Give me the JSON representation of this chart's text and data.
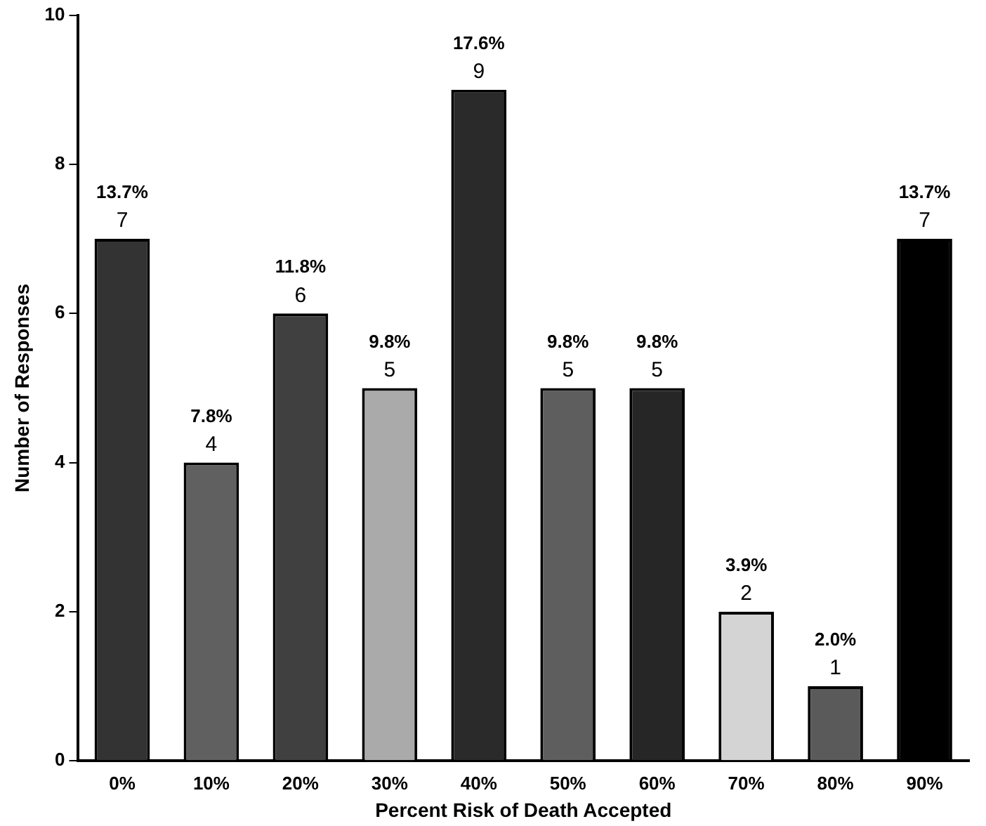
{
  "chart_data": {
    "type": "bar",
    "xlabel": "Percent Risk of Death Accepted",
    "ylabel": "Number of Responses",
    "categories": [
      "0%",
      "10%",
      "20%",
      "30%",
      "40%",
      "50%",
      "60%",
      "70%",
      "80%",
      "90%"
    ],
    "values": [
      7,
      4,
      6,
      5,
      9,
      5,
      5,
      2,
      1,
      7
    ],
    "colors": [
      "#333333",
      "#606060",
      "#404040",
      "#aaaaaa",
      "#2a2a2a",
      "#5e5e5e",
      "#262626",
      "#d4d4d4",
      "#5a5a5a",
      "#000000"
    ],
    "ylim": [
      0,
      10
    ],
    "yticks": [
      0,
      2,
      4,
      6,
      8,
      10
    ],
    "grid": false,
    "legend": false,
    "data_labels": true,
    "annotations": [
      {
        "text": "13.7%",
        "x": "0%",
        "y": 7
      },
      {
        "text": "7.8%",
        "x": "10%",
        "y": 4
      },
      {
        "text": "11.8%",
        "x": "20%",
        "y": 6
      },
      {
        "text": "9.8%",
        "x": "30%",
        "y": 5
      },
      {
        "text": "17.6%",
        "x": "40%",
        "y": 9
      },
      {
        "text": "9.8%",
        "x": "50%",
        "y": 5
      },
      {
        "text": "9.8%",
        "x": "60%",
        "y": 5
      },
      {
        "text": "3.9%",
        "x": "70%",
        "y": 2
      },
      {
        "text": "2.0%",
        "x": "80%",
        "y": 1
      },
      {
        "text": "13.7%",
        "x": "90%",
        "y": 7
      }
    ]
  }
}
